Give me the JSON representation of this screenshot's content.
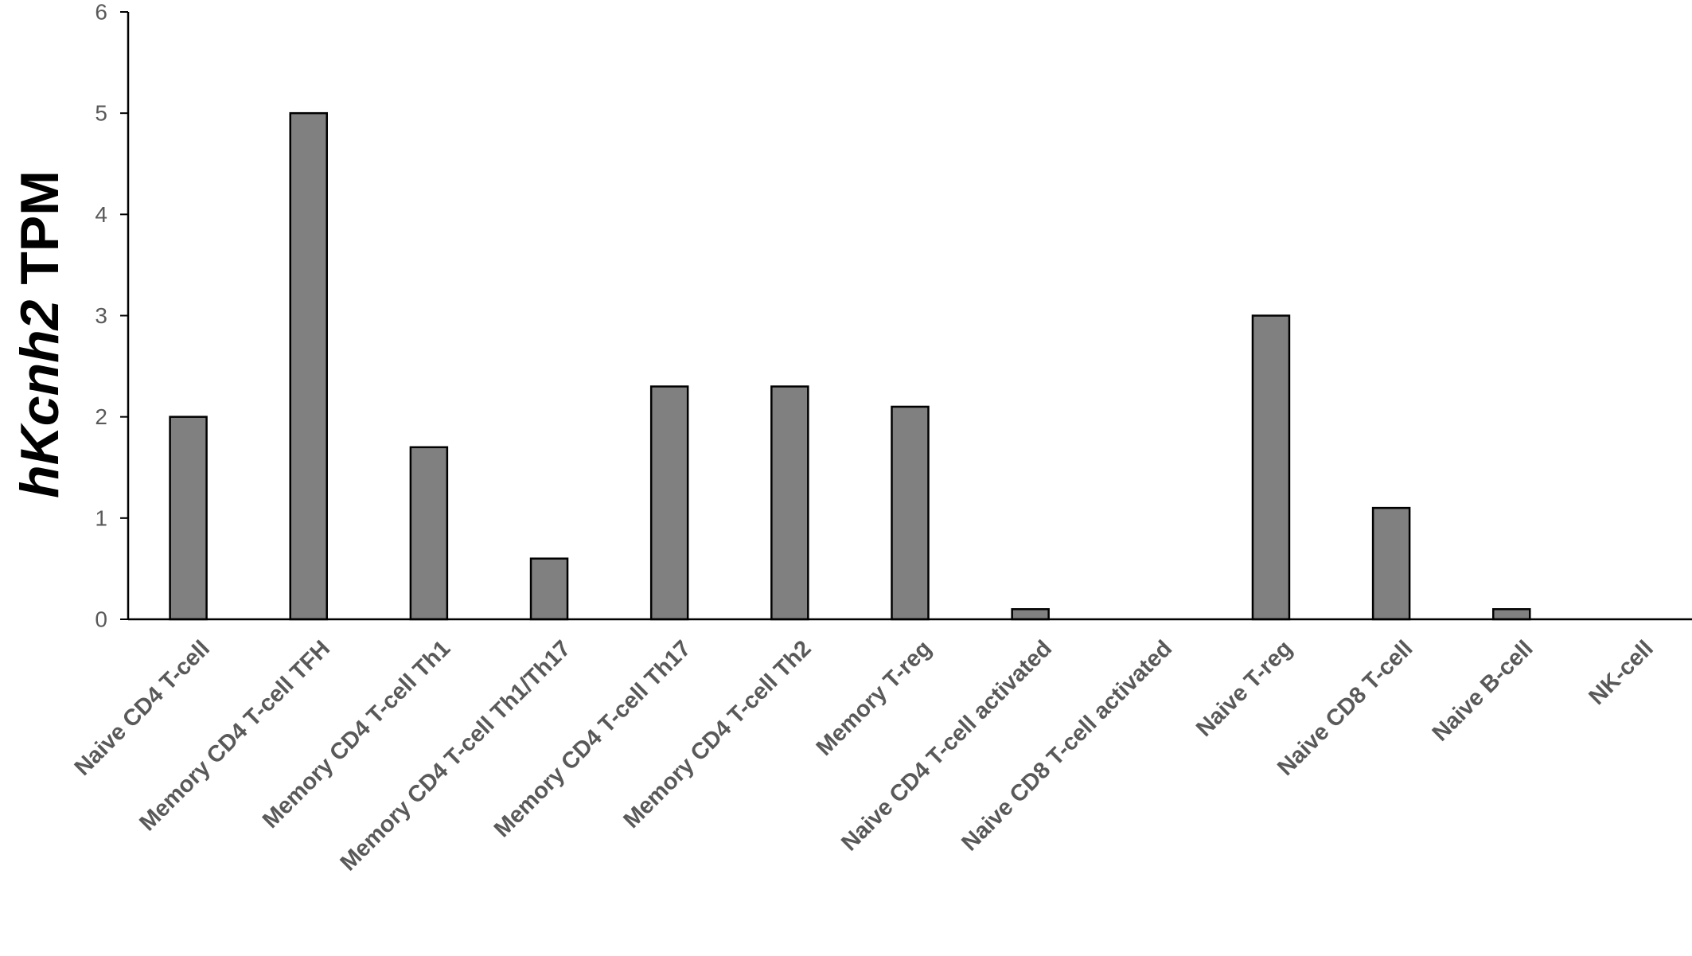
{
  "chart_data": {
    "type": "bar",
    "title": "",
    "xlabel": "",
    "ylabel": {
      "italic": "hKcnh2",
      "plain": " TPM"
    },
    "ylim": [
      0,
      6
    ],
    "yticks": [
      0,
      1,
      2,
      3,
      4,
      5,
      6
    ],
    "categories": [
      "Naive CD4 T-cell",
      "Memory CD4 T-cell TFH",
      "Memory CD4 T-cell Th1",
      "Memory CD4 T-cell Th1/Th17",
      "Memory CD4 T-cell Th17",
      "Memory CD4 T-cell Th2",
      "Memory T-reg",
      "Naive CD4 T-cell activated",
      "Naive CD8 T-cell activated",
      "Naive T-reg",
      "Naive CD8 T-cell",
      "Naive B-cell",
      "NK-cell"
    ],
    "values": [
      2.0,
      5.0,
      1.7,
      0.6,
      2.3,
      2.3,
      2.1,
      0.1,
      0.0,
      3.0,
      1.1,
      0.1,
      0.0
    ],
    "bar_color": "#808080",
    "grid": false,
    "legend": "none"
  }
}
